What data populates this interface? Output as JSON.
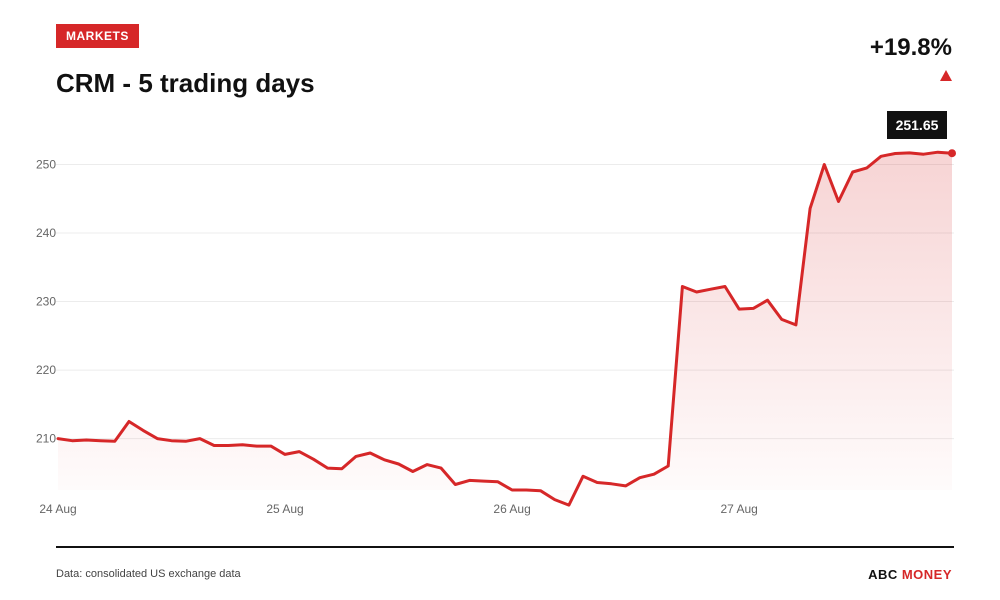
{
  "header": {
    "badge": "MARKETS",
    "title": "CRM - 5 trading days",
    "change": "+19.8%"
  },
  "footer": {
    "source": "Data: consolidated US exchange data",
    "brand_part1": "ABC",
    "brand_part2": "MONEY"
  },
  "colors": {
    "accent": "#d62728",
    "text": "#111111"
  },
  "chart_data": {
    "type": "area",
    "title": "CRM - 5 trading days",
    "xlabel": "",
    "ylabel": "",
    "ylim": [
      202.5,
      252.7
    ],
    "yticks": [
      210,
      220,
      230,
      240,
      250
    ],
    "xticks": [
      {
        "label": "24 Aug",
        "index": 0
      },
      {
        "label": "25 Aug",
        "index": 16
      },
      {
        "label": "26 Aug",
        "index": 32
      },
      {
        "label": "27 Aug",
        "index": 48
      }
    ],
    "last_value_label": "251.65",
    "grid": true,
    "series": [
      {
        "values": [
          210.0,
          209.7,
          209.8,
          209.7,
          209.6,
          212.5,
          211.2,
          210.0,
          209.7,
          209.6,
          210.0,
          209.0,
          209.0,
          209.1,
          208.9,
          208.9,
          207.7,
          208.1,
          207.0,
          205.7,
          205.6,
          207.4,
          207.9,
          206.9,
          206.3,
          205.2,
          206.2,
          205.7,
          203.3,
          203.9,
          203.8,
          203.7,
          202.5,
          202.5,
          202.4,
          201.1,
          200.3,
          204.5,
          203.6,
          203.4,
          203.1,
          204.3,
          204.8,
          206.0,
          232.2,
          231.4,
          231.8,
          232.2,
          228.9,
          229.0,
          230.2,
          227.4,
          226.6,
          243.6,
          250.0,
          244.6,
          248.9,
          249.5,
          251.2,
          251.6,
          251.7,
          251.5,
          251.8,
          251.65
        ]
      }
    ]
  }
}
